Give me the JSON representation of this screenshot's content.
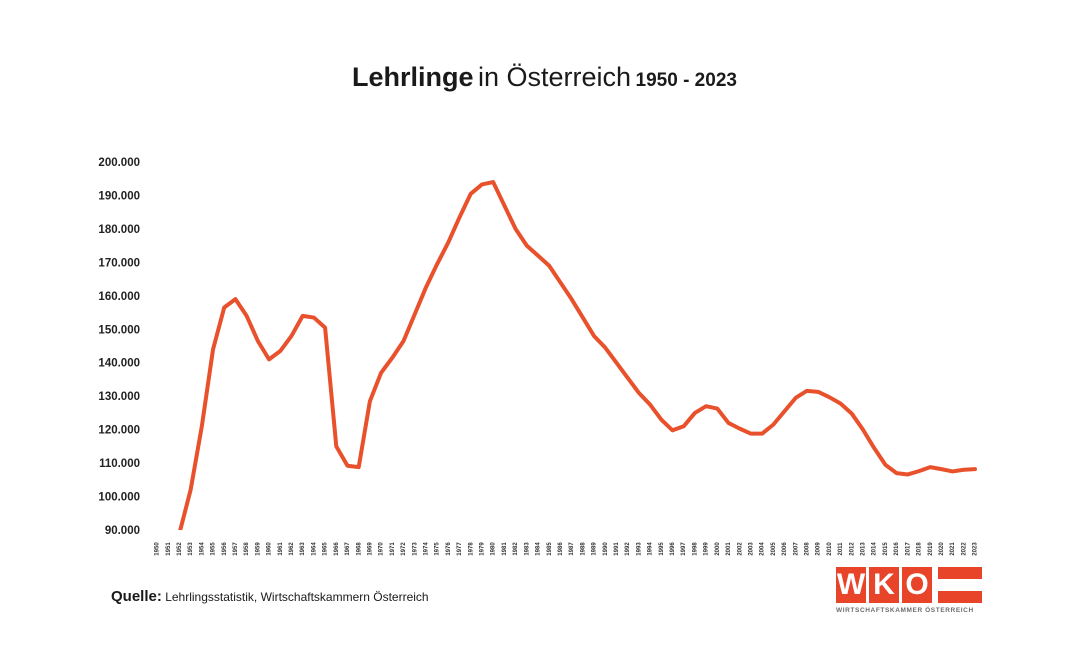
{
  "title": {
    "bold": "Lehrlinge",
    "normal": "in Österreich",
    "range": "1950 - 2023"
  },
  "source": {
    "label": "Quelle:",
    "text": "Lehrlingsstatistik, Wirtschaftskammern Österreich"
  },
  "logo": {
    "letters": [
      "W",
      "K",
      "O"
    ],
    "subtitle": "WIRTSCHAFTSKAMMER ÖSTERREICH",
    "color": "#e8442a"
  },
  "chart_data": {
    "type": "line",
    "title": "Lehrlinge in Österreich 1950 - 2023",
    "xlabel": "",
    "ylabel": "",
    "ylim": [
      90000,
      200000
    ],
    "yticks": [
      "90.000",
      "100.000",
      "110.000",
      "120.000",
      "130.000",
      "140.000",
      "150.000",
      "160.000",
      "170.000",
      "180.000",
      "190.000",
      "200.000"
    ],
    "ytick_values": [
      90000,
      100000,
      110000,
      120000,
      130000,
      140000,
      150000,
      160000,
      170000,
      180000,
      190000,
      200000
    ],
    "grid": false,
    "line_color": "#e8512c",
    "x": [
      "1950",
      "1951",
      "1952",
      "1953",
      "1954",
      "1955",
      "1956",
      "1957",
      "1958",
      "1959",
      "1960",
      "1961",
      "1962",
      "1963",
      "1964",
      "1965",
      "1966",
      "1967",
      "1968",
      "1969",
      "1970",
      "1971",
      "1972",
      "1973",
      "1974",
      "1975",
      "1976",
      "1977",
      "1978",
      "1979",
      "1980",
      "1981",
      "1982",
      "1983",
      "1984",
      "1985",
      "1986",
      "1987",
      "1988",
      "1989",
      "1990",
      "1991",
      "1992",
      "1993",
      "1994",
      "1995",
      "1996",
      "1997",
      "1998",
      "1999",
      "2000",
      "2001",
      "2002",
      "2003",
      "2004",
      "2005",
      "2006",
      "2007",
      "2008",
      "2009",
      "2010",
      "2011",
      "2012",
      "2013",
      "2014",
      "2015",
      "2016",
      "2017",
      "2018",
      "2019",
      "2020",
      "2021",
      "2022",
      "2023"
    ],
    "series": [
      {
        "values": [
          null,
          null,
          89000,
          102000,
          121000,
          144000,
          156500,
          159000,
          154000,
          146500,
          141000,
          143500,
          148000,
          154000,
          153500,
          150500,
          115000,
          109200,
          108800,
          128500,
          137000,
          141500,
          146500,
          154500,
          162500,
          169500,
          176000,
          183500,
          190500,
          193300,
          194000,
          187000,
          180000,
          175000,
          172000,
          169000,
          164000,
          159000,
          153500,
          148000,
          144500,
          140000,
          135500,
          131000,
          127500,
          123000,
          119800,
          121000,
          125000,
          127000,
          126300,
          122000,
          120300,
          118800,
          118800,
          121500,
          125500,
          129500,
          131600,
          131300,
          129700,
          127800,
          124800,
          120000,
          114500,
          109500,
          107000,
          106600,
          107600,
          108800,
          108200,
          107500,
          108000,
          108200
        ]
      }
    ]
  }
}
